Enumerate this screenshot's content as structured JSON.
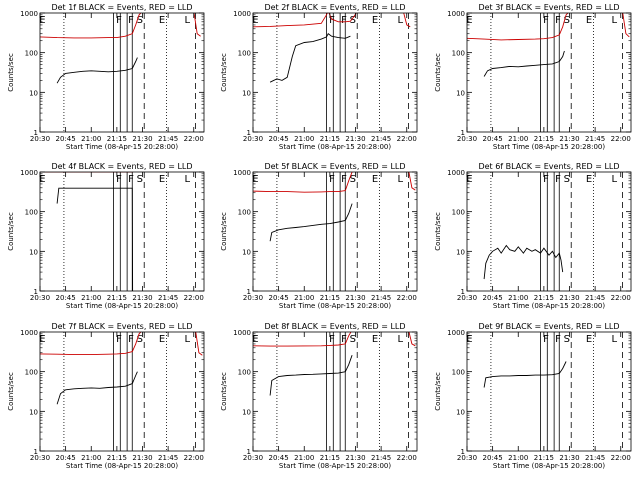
{
  "colors": {
    "events": "#000000",
    "lld": "#cc0000",
    "frame": "#000000"
  },
  "shared_axes": {
    "xticks": [
      "20:30",
      "20:45",
      "21:00",
      "21:15",
      "21:30",
      "21:45",
      "22:00"
    ],
    "xlabel": "Start Time (08-Apr-15 20:28:00)",
    "yticks": [
      "1",
      "10",
      "100",
      "1000"
    ],
    "ylabel": "Counts/sec",
    "ylim": [
      1,
      1000
    ],
    "yscale": "log",
    "xlim": [
      "20:30",
      "22:06"
    ]
  },
  "markers": {
    "dotted": [
      "20:44",
      "21:44"
    ],
    "solid": [
      "21:13",
      "21:17",
      "21:21",
      "21:24"
    ],
    "dashed": [
      "21:31",
      "22:01"
    ],
    "letters": [
      {
        "text": "E",
        "at": "20:29"
      },
      {
        "text": "F",
        "at": "21:14"
      },
      {
        "text": "F",
        "at": "21:21"
      },
      {
        "text": "S",
        "at": "21:26"
      },
      {
        "text": "E",
        "at": "21:39"
      },
      {
        "text": "L",
        "at": "21:54"
      }
    ]
  },
  "chart_data": [
    {
      "type": "line",
      "title": "Det 1f BLACK = Events, RED = LLD",
      "series": [
        {
          "name": "Events",
          "color": "#000000",
          "x": [
            "20:40",
            "20:42",
            "20:45",
            "20:50",
            "20:55",
            "21:00",
            "21:05",
            "21:10",
            "21:15",
            "21:20",
            "21:24",
            "21:26",
            "21:27"
          ],
          "values": [
            17,
            24,
            30,
            32,
            34,
            35,
            34,
            33,
            34,
            36,
            40,
            60,
            75
          ]
        },
        {
          "name": "LLD",
          "color": "#cc0000",
          "x": [
            "20:30",
            "20:40",
            "20:50",
            "21:00",
            "21:10",
            "21:15",
            "21:20",
            "21:24",
            "21:26",
            "21:28",
            "21:30",
            "22:00",
            "22:02",
            "22:04"
          ],
          "values": [
            250,
            240,
            235,
            235,
            240,
            240,
            260,
            300,
            500,
            900,
            1100,
            1100,
            300,
            260
          ]
        }
      ]
    },
    {
      "type": "line",
      "title": "Det 2f BLACK = Events, RED = LLD",
      "series": [
        {
          "name": "Events",
          "color": "#000000",
          "x": [
            "20:40",
            "20:44",
            "20:47",
            "20:50",
            "20:53",
            "20:55",
            "21:00",
            "21:05",
            "21:10",
            "21:13",
            "21:14",
            "21:16",
            "21:20",
            "21:24",
            "21:27"
          ],
          "values": [
            18,
            22,
            20,
            24,
            80,
            150,
            180,
            190,
            220,
            250,
            300,
            260,
            240,
            230,
            260
          ]
        },
        {
          "name": "LLD",
          "color": "#cc0000",
          "x": [
            "20:30",
            "20:40",
            "20:50",
            "21:00",
            "21:10",
            "21:13",
            "21:14",
            "21:16",
            "21:20",
            "21:24",
            "21:27",
            "21:29",
            "21:31",
            "21:58",
            "22:00",
            "22:02"
          ],
          "values": [
            450,
            460,
            480,
            500,
            550,
            900,
            1200,
            700,
            600,
            600,
            620,
            800,
            1100,
            1100,
            500,
            450
          ]
        }
      ]
    },
    {
      "type": "line",
      "title": "Det 3f BLACK = Events, RED = LLD",
      "series": [
        {
          "name": "Events",
          "color": "#000000",
          "x": [
            "20:40",
            "20:42",
            "20:45",
            "20:50",
            "20:55",
            "21:00",
            "21:05",
            "21:10",
            "21:15",
            "21:20",
            "21:24",
            "21:26",
            "21:27"
          ],
          "values": [
            25,
            35,
            40,
            42,
            45,
            44,
            46,
            48,
            50,
            52,
            60,
            80,
            110
          ]
        },
        {
          "name": "LLD",
          "color": "#cc0000",
          "x": [
            "20:30",
            "20:40",
            "20:50",
            "21:00",
            "21:10",
            "21:15",
            "21:20",
            "21:24",
            "21:26",
            "21:28",
            "21:30",
            "22:01",
            "22:03",
            "22:05"
          ],
          "values": [
            230,
            220,
            210,
            215,
            220,
            225,
            240,
            280,
            450,
            900,
            1100,
            1100,
            300,
            250
          ]
        }
      ]
    },
    {
      "type": "line",
      "title": "Det 4f BLACK = Events, RED = LLD",
      "series": [
        {
          "name": "Events",
          "color": "#000000",
          "x": [
            "20:40",
            "20:41",
            "20:45",
            "21:00",
            "21:15",
            "21:24",
            "21:24.2"
          ],
          "values": [
            160,
            390,
            390,
            390,
            390,
            390,
            1
          ]
        },
        {
          "name": "LLD",
          "color": "#cc0000",
          "x": [
            "20:30",
            "20:45",
            "21:00",
            "21:15",
            "21:24",
            "21:26",
            "21:28",
            "21:30",
            "22:01",
            "22:03",
            "22:05"
          ],
          "values": [
            1000,
            1000,
            1000,
            1000,
            1000,
            1100,
            1300,
            1400,
            1400,
            1100,
            1000
          ]
        }
      ]
    },
    {
      "type": "line",
      "title": "Det 5f BLACK = Events, RED = LLD",
      "series": [
        {
          "name": "Events",
          "color": "#000000",
          "x": [
            "20:40",
            "20:41",
            "20:45",
            "20:50",
            "20:55",
            "21:00",
            "21:05",
            "21:10",
            "21:15",
            "21:20",
            "21:24",
            "21:26",
            "21:28"
          ],
          "values": [
            18,
            30,
            35,
            38,
            40,
            42,
            45,
            48,
            50,
            55,
            60,
            90,
            160
          ]
        },
        {
          "name": "LLD",
          "color": "#cc0000",
          "x": [
            "20:30",
            "20:40",
            "20:50",
            "21:00",
            "21:10",
            "21:15",
            "21:20",
            "21:24",
            "21:26",
            "21:28",
            "21:30",
            "22:01",
            "22:03",
            "22:05"
          ],
          "values": [
            330,
            320,
            320,
            310,
            315,
            320,
            320,
            340,
            600,
            1000,
            1200,
            1200,
            400,
            350
          ]
        }
      ]
    },
    {
      "type": "line",
      "title": "Det 6f BLACK = Events, RED = LLD",
      "series": [
        {
          "name": "Events",
          "color": "#000000",
          "x": [
            "20:40",
            "20:41",
            "20:43",
            "20:45",
            "20:48",
            "20:50",
            "20:53",
            "20:55",
            "20:58",
            "21:00",
            "21:03",
            "21:05",
            "21:08",
            "21:10",
            "21:13",
            "21:15",
            "21:18",
            "21:20",
            "21:22",
            "21:24",
            "21:25",
            "21:26"
          ],
          "values": [
            2,
            5,
            8,
            10,
            12,
            9,
            14,
            11,
            10,
            13,
            9,
            12,
            10,
            11,
            9,
            12,
            8,
            10,
            7,
            9,
            6,
            3
          ]
        }
      ]
    },
    {
      "type": "line",
      "title": "Det 7f BLACK = Events, RED = LLD",
      "series": [
        {
          "name": "Events",
          "color": "#000000",
          "x": [
            "20:40",
            "20:42",
            "20:45",
            "20:50",
            "20:55",
            "21:00",
            "21:05",
            "21:10",
            "21:15",
            "21:20",
            "21:24",
            "21:26",
            "21:27"
          ],
          "values": [
            15,
            28,
            35,
            37,
            38,
            39,
            38,
            40,
            41,
            43,
            50,
            80,
            100
          ]
        },
        {
          "name": "LLD",
          "color": "#cc0000",
          "x": [
            "20:30",
            "20:40",
            "20:50",
            "21:00",
            "21:10",
            "21:15",
            "21:20",
            "21:24",
            "21:26",
            "21:28",
            "21:30",
            "22:01",
            "22:03",
            "22:05"
          ],
          "values": [
            280,
            275,
            270,
            270,
            275,
            280,
            290,
            320,
            500,
            900,
            1100,
            1100,
            300,
            260
          ]
        }
      ]
    },
    {
      "type": "line",
      "title": "Det 8f BLACK = Events, RED = LLD",
      "series": [
        {
          "name": "Events",
          "color": "#000000",
          "x": [
            "20:40",
            "20:41",
            "20:45",
            "20:50",
            "20:55",
            "21:00",
            "21:05",
            "21:10",
            "21:15",
            "21:20",
            "21:24",
            "21:26",
            "21:28"
          ],
          "values": [
            25,
            60,
            75,
            80,
            82,
            85,
            86,
            88,
            90,
            92,
            100,
            150,
            260
          ]
        },
        {
          "name": "LLD",
          "color": "#cc0000",
          "x": [
            "20:30",
            "20:40",
            "20:50",
            "21:00",
            "21:10",
            "21:15",
            "21:20",
            "21:24",
            "21:26",
            "21:28",
            "21:30",
            "22:01",
            "22:03",
            "22:05"
          ],
          "values": [
            450,
            440,
            440,
            445,
            450,
            460,
            470,
            500,
            800,
            1200,
            1400,
            1400,
            500,
            450
          ]
        }
      ]
    },
    {
      "type": "line",
      "title": "Det 9f BLACK = Events, RED = LLD",
      "series": [
        {
          "name": "Events",
          "color": "#000000",
          "x": [
            "20:40",
            "20:41",
            "20:45",
            "20:50",
            "20:55",
            "21:00",
            "21:05",
            "21:10",
            "21:15",
            "21:20",
            "21:24",
            "21:26",
            "21:28"
          ],
          "values": [
            40,
            70,
            75,
            78,
            78,
            80,
            80,
            82,
            82,
            84,
            90,
            120,
            180
          ]
        }
      ]
    }
  ]
}
